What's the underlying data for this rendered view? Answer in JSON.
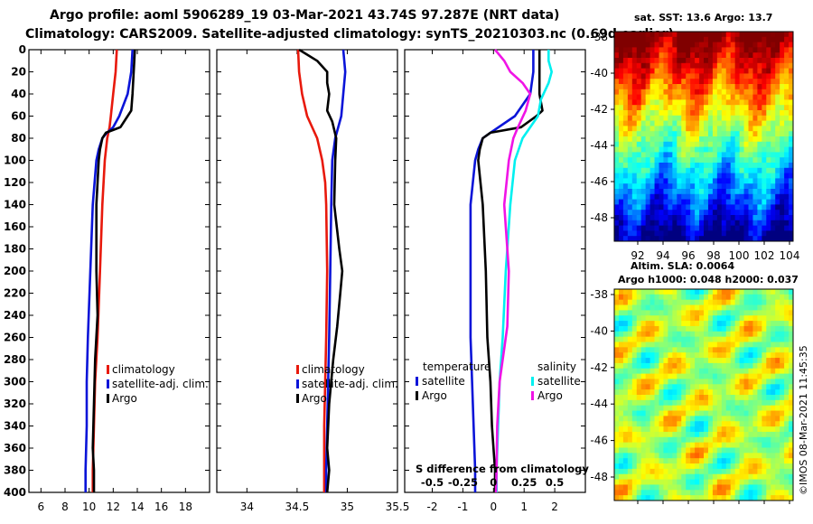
{
  "title_line1": "Argo profile: aoml 5906289_19 03-Mar-2021 43.74S 97.287E (NRT data)",
  "title_line2": "Climatology: CARS2009. Satellite-adjusted climatology: synTS_20210303.nc (0.69d earlier)",
  "credit": "©IMOS 08-Mar-2021 11:45:35",
  "colors": {
    "climatology": "#e8190c",
    "satellite": "#0a14d8",
    "argo": "#000000",
    "salinity_satellite": "#00f0f0",
    "salinity_argo": "#f014e6"
  },
  "chart_data": [
    {
      "id": "temperature",
      "type": "line",
      "xlim": [
        5,
        20
      ],
      "ylim": [
        400,
        0
      ],
      "x_ticks": [
        "6",
        "8",
        "10",
        "12",
        "14",
        "16",
        "18"
      ],
      "x_tick_values": [
        6,
        8,
        10,
        12,
        14,
        16,
        18
      ],
      "y_ticks": [
        "0",
        "20",
        "40",
        "60",
        "80",
        "100",
        "120",
        "140",
        "160",
        "180",
        "200",
        "220",
        "240",
        "260",
        "280",
        "300",
        "320",
        "340",
        "360",
        "380",
        "400"
      ],
      "legend": [
        "climatology",
        "satellite-adj. clim.",
        "Argo"
      ],
      "series": [
        {
          "name": "climatology",
          "depth": [
            0,
            20,
            40,
            60,
            70,
            80,
            100,
            140,
            200,
            260,
            300,
            340,
            380,
            400
          ],
          "values": [
            12.3,
            12.2,
            12.0,
            11.8,
            11.7,
            11.5,
            11.3,
            11.1,
            10.9,
            10.7,
            10.5,
            10.4,
            10.3,
            10.3
          ]
        },
        {
          "name": "satellite-adj. clim.",
          "depth": [
            0,
            20,
            40,
            60,
            70,
            76,
            80,
            90,
            100,
            140,
            200,
            260,
            300,
            340,
            380,
            400
          ],
          "values": [
            13.6,
            13.5,
            13.2,
            12.5,
            12.0,
            11.4,
            11.1,
            10.8,
            10.6,
            10.3,
            10.1,
            9.9,
            9.8,
            9.8,
            9.7,
            9.7
          ],
          "color": "satellite"
        },
        {
          "name": "Argo",
          "depth": [
            0,
            20,
            40,
            55,
            60,
            70,
            75,
            80,
            90,
            100,
            140,
            200,
            240,
            280,
            320,
            360,
            380,
            400
          ],
          "values": [
            13.8,
            13.7,
            13.6,
            13.5,
            13.2,
            12.6,
            11.4,
            11.1,
            10.9,
            10.8,
            10.6,
            10.6,
            10.7,
            10.5,
            10.4,
            10.3,
            10.4,
            10.4
          ],
          "color": "argo"
        }
      ]
    },
    {
      "id": "salinity",
      "type": "line",
      "xlim": [
        33.7,
        35.5
      ],
      "ylim": [
        400,
        0
      ],
      "x_ticks": [
        "34",
        "34.5",
        "35",
        "35.5"
      ],
      "x_tick_values": [
        34,
        34.5,
        35,
        35.5
      ],
      "legend": [
        "climatology",
        "satellite-adj. clim.",
        "Argo"
      ],
      "series": [
        {
          "name": "climatology",
          "depth": [
            0,
            20,
            40,
            60,
            80,
            100,
            120,
            140,
            200,
            260,
            300,
            340,
            380,
            400
          ],
          "values": [
            34.51,
            34.52,
            34.55,
            34.6,
            34.7,
            34.75,
            34.78,
            34.79,
            34.8,
            34.79,
            34.78,
            34.77,
            34.77,
            34.77
          ]
        },
        {
          "name": "satellite-adj. clim.",
          "depth": [
            0,
            20,
            40,
            60,
            80,
            100,
            140,
            200,
            260,
            300,
            340,
            380,
            400
          ],
          "values": [
            34.96,
            34.98,
            34.96,
            34.94,
            34.88,
            34.85,
            34.84,
            34.83,
            34.82,
            34.81,
            34.8,
            34.79,
            34.79
          ],
          "color": "satellite"
        },
        {
          "name": "Argo",
          "depth": [
            0,
            10,
            20,
            30,
            40,
            55,
            65,
            80,
            100,
            140,
            180,
            200,
            220,
            250,
            280,
            320,
            360,
            380,
            400
          ],
          "values": [
            34.52,
            34.7,
            34.8,
            34.8,
            34.82,
            34.8,
            34.85,
            34.89,
            34.88,
            34.87,
            34.92,
            34.95,
            34.93,
            34.9,
            34.86,
            34.82,
            34.8,
            34.82,
            34.8
          ],
          "color": "argo"
        }
      ]
    },
    {
      "id": "difference",
      "type": "line",
      "xlim": [
        -2.9,
        3.0
      ],
      "ylim": [
        400,
        0
      ],
      "x_ticks": [
        "-2",
        "-1",
        "0",
        "1",
        "2"
      ],
      "x_tick_values": [
        -2,
        -1,
        0,
        1,
        2
      ],
      "xlabel": "S difference from climatology",
      "s_ticks": [
        "-0.5",
        "-0.25",
        "0",
        "0.25",
        "0.5"
      ],
      "s_tick_values": [
        -0.5,
        -0.25,
        0,
        0.25,
        0.5
      ],
      "legend_temperature": {
        "title": "temperature",
        "items": [
          "satellite",
          "Argo"
        ]
      },
      "legend_salinity": {
        "title": "salinity",
        "items": [
          "satellite",
          "Argo"
        ]
      },
      "series": [
        {
          "name": "temperature satellite",
          "depth": [
            0,
            20,
            40,
            60,
            75,
            80,
            90,
            100,
            140,
            200,
            260,
            300,
            340,
            380,
            400
          ],
          "values": [
            1.3,
            1.3,
            1.2,
            0.7,
            -0.1,
            -0.35,
            -0.5,
            -0.6,
            -0.75,
            -0.75,
            -0.75,
            -0.7,
            -0.65,
            -0.6,
            -0.6
          ],
          "color": "satellite"
        },
        {
          "name": "temperature Argo",
          "depth": [
            0,
            20,
            40,
            55,
            60,
            70,
            75,
            80,
            90,
            100,
            140,
            200,
            260,
            300,
            340,
            380,
            400
          ],
          "values": [
            1.5,
            1.5,
            1.5,
            1.6,
            1.4,
            0.9,
            -0.1,
            -0.35,
            -0.45,
            -0.5,
            -0.35,
            -0.25,
            -0.2,
            -0.1,
            -0.05,
            0.05,
            0.05
          ],
          "color": "argo"
        },
        {
          "name": "salinity satellite",
          "depth": [
            0,
            10,
            20,
            30,
            45,
            60,
            80,
            100,
            140,
            200,
            260,
            300,
            340,
            380,
            400
          ],
          "values": [
            1.8,
            1.8,
            1.9,
            1.8,
            1.55,
            1.45,
            0.95,
            0.7,
            0.55,
            0.4,
            0.3,
            0.2,
            0.15,
            0.1,
            0.1
          ],
          "color": "salinity_satellite"
        },
        {
          "name": "salinity Argo",
          "depth": [
            0,
            10,
            20,
            30,
            40,
            55,
            70,
            80,
            100,
            140,
            200,
            250,
            300,
            340,
            380,
            400
          ],
          "values": [
            0.05,
            0.35,
            0.55,
            0.95,
            1.2,
            1.05,
            0.8,
            0.65,
            0.5,
            0.35,
            0.5,
            0.45,
            0.2,
            0.12,
            0.1,
            0.08
          ],
          "color": "salinity_argo"
        }
      ]
    },
    {
      "id": "sst_map",
      "type": "heatmap",
      "title": "sat. SST: 13.6 Argo: 13.7",
      "x_ticks": [
        "92",
        "94",
        "96",
        "98",
        "100",
        "102",
        "104"
      ],
      "y_ticks": [
        "-38",
        "-40",
        "-42",
        "-44",
        "-46",
        "-48"
      ]
    },
    {
      "id": "sla_map",
      "type": "heatmap",
      "title1": "Altim. SLA: 0.0064",
      "title2": "Argo h1000: 0.048 h2000: 0.037",
      "y_ticks": [
        "-38",
        "-40",
        "-42",
        "-44",
        "-46",
        "-48"
      ]
    }
  ]
}
